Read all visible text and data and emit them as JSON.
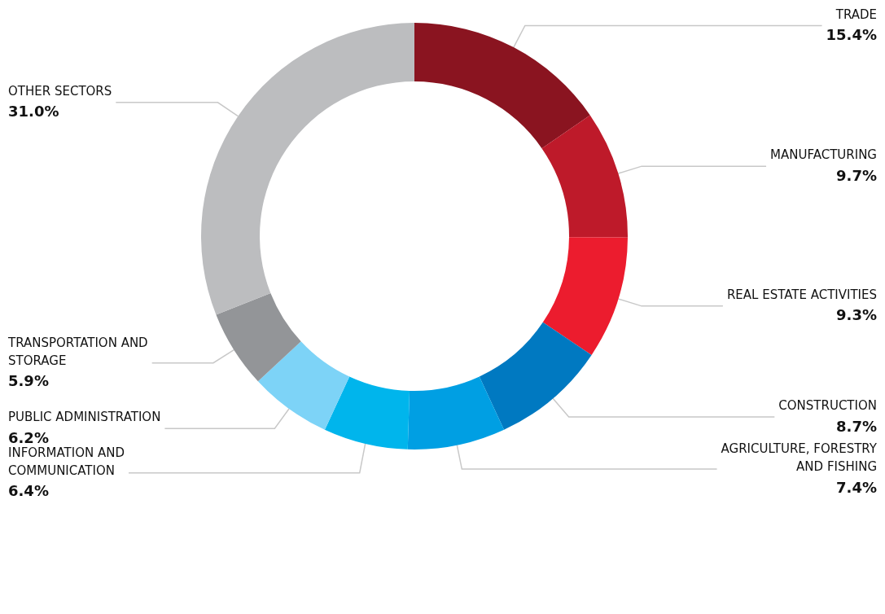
{
  "chart_data": {
    "type": "donut",
    "categories": [
      "TRADE",
      "MANUFACTURING",
      "REAL ESTATE ACTIVITIES",
      "CONSTRUCTION",
      "AGRICULTURE, FORESTRY AND FISHING",
      "INFORMATION AND COMMUNICATION",
      "PUBLIC ADMINISTRATION",
      "TRANSPORTATION AND STORAGE",
      "OTHER SECTORS"
    ],
    "values": [
      15.4,
      9.7,
      9.3,
      8.7,
      7.4,
      6.4,
      6.2,
      5.9,
      31.0
    ],
    "value_labels": [
      "15.4%",
      "9.7%",
      "9.3%",
      "8.7%",
      "7.4%",
      "6.4%",
      "6.2%",
      "5.9%",
      "31.0%"
    ],
    "colors": [
      "#8a1420",
      "#be1a2a",
      "#ec1c2e",
      "#0079c1",
      "#009fe3",
      "#00b5ec",
      "#7dd3f7",
      "#939598",
      "#bcbdbf"
    ],
    "legend": false
  }
}
